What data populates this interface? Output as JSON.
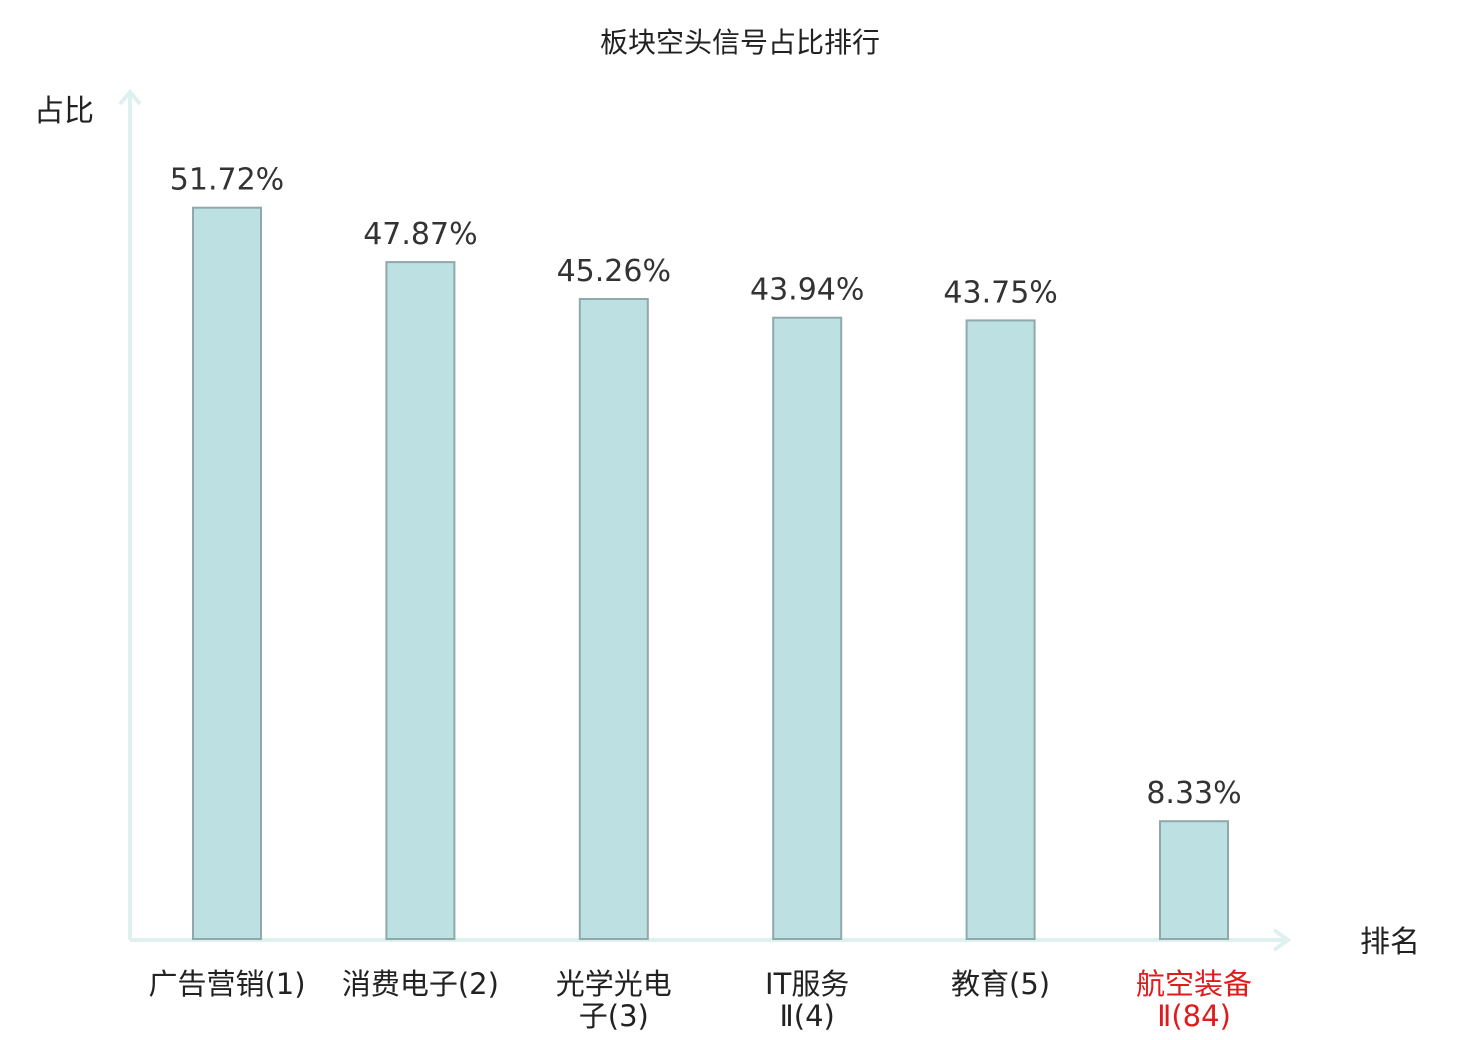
{
  "chart_data": {
    "type": "bar",
    "title": "板块空头信号占比排行",
    "ylabel": "占比",
    "xlabel": "排名",
    "categories": [
      {
        "lines": [
          "广告营销(1)"
        ],
        "highlight": false
      },
      {
        "lines": [
          "消费电子(2)"
        ],
        "highlight": false
      },
      {
        "lines": [
          "光学光电",
          "子(3)"
        ],
        "highlight": false
      },
      {
        "lines": [
          "IT服务",
          "Ⅱ(4)"
        ],
        "highlight": false
      },
      {
        "lines": [
          "教育(5)"
        ],
        "highlight": false
      },
      {
        "lines": [
          "航空装备",
          "Ⅱ(84)"
        ],
        "highlight": true
      }
    ],
    "values": [
      51.72,
      47.87,
      45.26,
      43.94,
      43.75,
      8.33
    ],
    "value_labels": [
      "51.72%",
      "47.87%",
      "45.26%",
      "43.94%",
      "43.75%",
      "8.33%"
    ],
    "ylim": [
      0,
      60
    ],
    "grid": false,
    "colors": {
      "bar_fill": "#bde0e3",
      "bar_stroke": "#8fa9ab",
      "axis": "#dff1ef",
      "highlight_text": "#e01b1b"
    }
  }
}
